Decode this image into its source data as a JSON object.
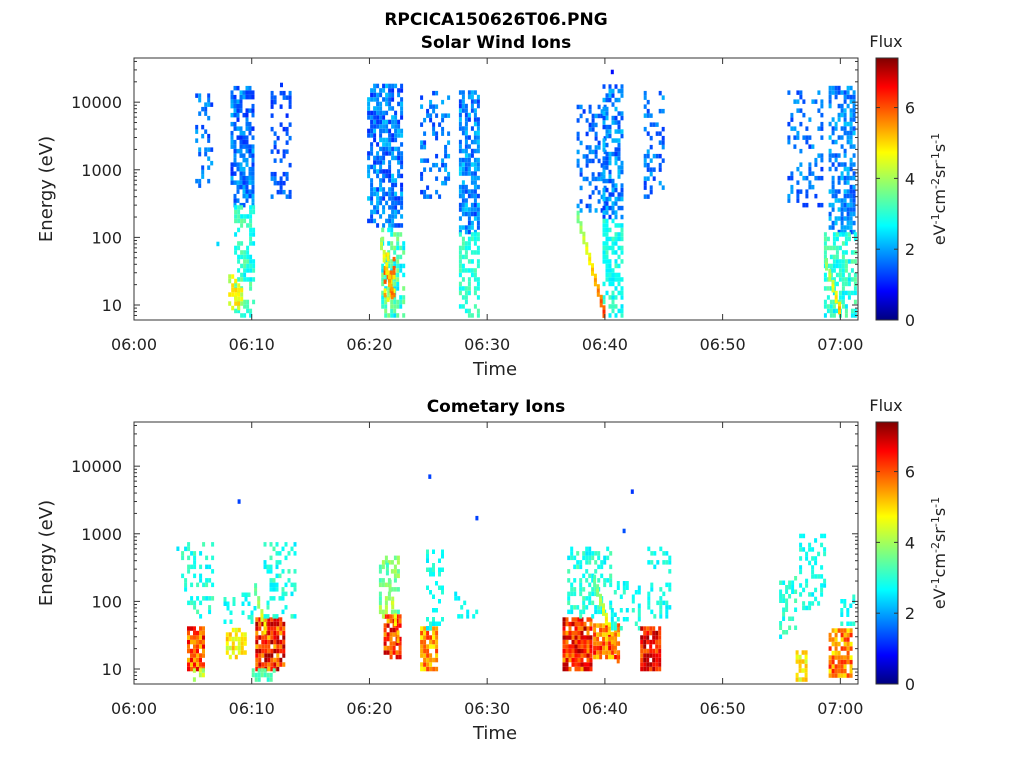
{
  "figure_title": "RPCICA150626T06.PNG",
  "chart_data": [
    {
      "type": "heatmap",
      "title": "Solar Wind Ions",
      "xlabel": "Time",
      "ylabel": "Energy (eV)",
      "x_ticks": [
        "06:00",
        "06:10",
        "06:20",
        "06:30",
        "06:40",
        "06:50",
        "07:00"
      ],
      "x_tick_minutes": [
        0,
        10,
        20,
        30,
        40,
        50,
        60
      ],
      "xlim_minutes": [
        0,
        61.5
      ],
      "y_scale": "log",
      "y_ticks": [
        "10",
        "100",
        "1000",
        "10000"
      ],
      "y_tick_values": [
        10,
        100,
        1000,
        10000
      ],
      "ylim": [
        6,
        45000
      ],
      "colorbar": {
        "label_top": "Flux",
        "range": [
          0,
          7.4
        ],
        "ticks": [
          "0",
          "2",
          "4",
          "6"
        ],
        "tick_values": [
          0,
          2,
          4,
          6
        ]
      },
      "clusters": [
        {
          "t": [
            5.2,
            6.6
          ],
          "e": [
            500,
            14000
          ],
          "level": [
            1.3,
            2.2
          ],
          "density": 0.25
        },
        {
          "t": [
            8.2,
            10.0
          ],
          "e": [
            300,
            17000
          ],
          "level": [
            1.2,
            2.3
          ],
          "density": 0.65
        },
        {
          "t": [
            8.5,
            10.2
          ],
          "e": [
            7,
            300
          ],
          "level": [
            2.6,
            3.6
          ],
          "density": 0.55
        },
        {
          "t": [
            8.0,
            9.2
          ],
          "e": [
            9,
            30
          ],
          "level": [
            3.8,
            5.0
          ],
          "density": 0.7
        },
        {
          "t": [
            11.6,
            13.2
          ],
          "e": [
            400,
            18000
          ],
          "level": [
            1.2,
            2.0
          ],
          "density": 0.3
        },
        {
          "t": [
            19.8,
            22.8
          ],
          "e": [
            150,
            18000
          ],
          "level": [
            1.2,
            2.4
          ],
          "density": 0.6
        },
        {
          "t": [
            21.0,
            22.8
          ],
          "e": [
            7,
            150
          ],
          "level": [
            2.5,
            3.8
          ],
          "density": 0.55
        },
        {
          "t": [
            21.2,
            22.2
          ],
          "e": [
            12,
            60
          ],
          "level": [
            4.5,
            6.0
          ],
          "density": 0.6
        },
        {
          "t": [
            24.3,
            26.8
          ],
          "e": [
            400,
            14000
          ],
          "level": [
            1.3,
            2.3
          ],
          "density": 0.3
        },
        {
          "t": [
            27.6,
            29.3
          ],
          "e": [
            120,
            16000
          ],
          "level": [
            1.3,
            2.5
          ],
          "density": 0.65
        },
        {
          "t": [
            27.6,
            29.3
          ],
          "e": [
            7,
            120
          ],
          "level": [
            2.8,
            3.4
          ],
          "density": 0.55
        },
        {
          "t": [
            37.6,
            40.0
          ],
          "e": [
            250,
            9000
          ],
          "level": [
            1.3,
            2.2
          ],
          "density": 0.28
        },
        {
          "t": [
            39.8,
            41.5
          ],
          "e": [
            200,
            18000
          ],
          "level": [
            1.3,
            2.4
          ],
          "density": 0.65
        },
        {
          "t": [
            39.8,
            41.5
          ],
          "e": [
            7,
            200
          ],
          "level": [
            2.6,
            3.3
          ],
          "density": 0.55
        },
        {
          "t": [
            43.3,
            45.0
          ],
          "e": [
            400,
            14000
          ],
          "level": [
            1.3,
            2.2
          ],
          "density": 0.3
        },
        {
          "t": [
            55.5,
            58.5
          ],
          "e": [
            300,
            16000
          ],
          "level": [
            1.3,
            2.2
          ],
          "density": 0.3
        },
        {
          "t": [
            59.0,
            61.5
          ],
          "e": [
            120,
            18000
          ],
          "level": [
            1.4,
            2.4
          ],
          "density": 0.6
        },
        {
          "t": [
            58.6,
            61.5
          ],
          "e": [
            7,
            120
          ],
          "level": [
            2.6,
            3.5
          ],
          "density": 0.55
        }
      ],
      "streaks": [
        {
          "t": [
            37.6,
            39.8
          ],
          "e": [
            200,
            8
          ],
          "level": [
            3.8,
            6.2
          ]
        },
        {
          "t": [
            20.9,
            21.8
          ],
          "e": [
            80,
            15
          ],
          "level": [
            4.2,
            5.8
          ]
        },
        {
          "t": [
            58.7,
            59.8
          ],
          "e": [
            40,
            9
          ],
          "level": [
            4.0,
            5.2
          ]
        }
      ],
      "isolated": [
        {
          "t": 40.5,
          "e": 28000,
          "level": 1.0
        },
        {
          "t": 12.4,
          "e": 18000,
          "level": 1.3
        },
        {
          "t": 7.0,
          "e": 80,
          "level": 2.5
        }
      ]
    },
    {
      "type": "heatmap",
      "title": "Cometary Ions",
      "xlabel": "Time",
      "ylabel": "Energy (eV)",
      "x_ticks": [
        "06:00",
        "06:10",
        "06:20",
        "06:30",
        "06:40",
        "06:50",
        "07:00"
      ],
      "x_tick_minutes": [
        0,
        10,
        20,
        30,
        40,
        50,
        60
      ],
      "xlim_minutes": [
        0,
        61.5
      ],
      "y_scale": "log",
      "y_ticks": [
        "10",
        "100",
        "1000",
        "10000"
      ],
      "y_tick_values": [
        10,
        100,
        1000,
        10000
      ],
      "ylim": [
        6,
        45000
      ],
      "colorbar": {
        "label_top": "Flux",
        "range": [
          0,
          7.4
        ],
        "ticks": [
          "0",
          "2",
          "4",
          "6"
        ],
        "tick_values": [
          0,
          2,
          4,
          6
        ]
      },
      "clusters": [
        {
          "t": [
            4.0,
            6.8
          ],
          "e": [
            60,
            700
          ],
          "level": [
            2.6,
            3.4
          ],
          "density": 0.3
        },
        {
          "t": [
            4.5,
            6.0
          ],
          "e": [
            10,
            45
          ],
          "level": [
            5.0,
            6.8
          ],
          "density": 0.85
        },
        {
          "t": [
            5.0,
            6.0
          ],
          "e": [
            6,
            10
          ],
          "level": [
            3.8,
            4.6
          ],
          "density": 0.6
        },
        {
          "t": [
            7.8,
            9.4
          ],
          "e": [
            15,
            40
          ],
          "level": [
            4.0,
            5.2
          ],
          "density": 0.7
        },
        {
          "t": [
            7.6,
            10.2
          ],
          "e": [
            50,
            140
          ],
          "level": [
            2.6,
            3.2
          ],
          "density": 0.3
        },
        {
          "t": [
            10.3,
            12.6
          ],
          "e": [
            10,
            60
          ],
          "level": [
            5.0,
            7.2
          ],
          "density": 0.9
        },
        {
          "t": [
            11.0,
            13.6
          ],
          "e": [
            60,
            700
          ],
          "level": [
            2.6,
            3.4
          ],
          "density": 0.35
        },
        {
          "t": [
            10.0,
            12.0
          ],
          "e": [
            6,
            10
          ],
          "level": [
            3.0,
            3.6
          ],
          "density": 0.5
        },
        {
          "t": [
            21.2,
            22.6
          ],
          "e": [
            15,
            60
          ],
          "level": [
            5.0,
            7.0
          ],
          "density": 0.85
        },
        {
          "t": [
            20.8,
            22.5
          ],
          "e": [
            60,
            450
          ],
          "level": [
            3.2,
            4.2
          ],
          "density": 0.5
        },
        {
          "t": [
            24.3,
            25.6
          ],
          "e": [
            10,
            40
          ],
          "level": [
            4.6,
            6.2
          ],
          "density": 0.8
        },
        {
          "t": [
            24.8,
            26.2
          ],
          "e": [
            40,
            600
          ],
          "level": [
            2.6,
            3.2
          ],
          "density": 0.35
        },
        {
          "t": [
            27.2,
            29.0
          ],
          "e": [
            60,
            150
          ],
          "level": [
            2.6,
            3.0
          ],
          "density": 0.25
        },
        {
          "t": [
            36.4,
            38.8
          ],
          "e": [
            10,
            60
          ],
          "level": [
            5.2,
            7.2
          ],
          "density": 0.9
        },
        {
          "t": [
            36.8,
            40.5
          ],
          "e": [
            60,
            600
          ],
          "level": [
            2.6,
            3.4
          ],
          "density": 0.4
        },
        {
          "t": [
            39.0,
            41.2
          ],
          "e": [
            15,
            50
          ],
          "level": [
            4.8,
            6.6
          ],
          "density": 0.85
        },
        {
          "t": [
            40.5,
            43.0
          ],
          "e": [
            40,
            200
          ],
          "level": [
            2.6,
            3.2
          ],
          "density": 0.3
        },
        {
          "t": [
            43.0,
            44.6
          ],
          "e": [
            10,
            40
          ],
          "level": [
            5.6,
            7.2
          ],
          "density": 0.9
        },
        {
          "t": [
            43.6,
            45.4
          ],
          "e": [
            60,
            600
          ],
          "level": [
            2.6,
            3.2
          ],
          "density": 0.3
        },
        {
          "t": [
            54.8,
            56.2
          ],
          "e": [
            30,
            250
          ],
          "level": [
            2.6,
            3.4
          ],
          "density": 0.4
        },
        {
          "t": [
            56.2,
            57.2
          ],
          "e": [
            6,
            20
          ],
          "level": [
            4.2,
            5.2
          ],
          "density": 0.7
        },
        {
          "t": [
            56.5,
            58.6
          ],
          "e": [
            80,
            1000
          ],
          "level": [
            2.6,
            3.2
          ],
          "density": 0.3
        },
        {
          "t": [
            59.0,
            60.8
          ],
          "e": [
            8,
            40
          ],
          "level": [
            4.6,
            6.4
          ],
          "density": 0.8
        },
        {
          "t": [
            60.0,
            61.5
          ],
          "e": [
            40,
            150
          ],
          "level": [
            2.6,
            3.2
          ],
          "density": 0.3
        }
      ],
      "streaks": [
        {
          "t": [
            39.0,
            41.0
          ],
          "e": [
            200,
            15
          ],
          "level": [
            3.6,
            6.0
          ]
        },
        {
          "t": [
            10.2,
            11.0
          ],
          "e": [
            150,
            40
          ],
          "level": [
            3.6,
            5.0
          ]
        },
        {
          "t": [
            21.4,
            22.3
          ],
          "e": [
            300,
            30
          ],
          "level": [
            3.4,
            5.4
          ]
        }
      ],
      "isolated": [
        {
          "t": 8.8,
          "e": 3000,
          "level": 1.4
        },
        {
          "t": 25.0,
          "e": 7000,
          "level": 1.4
        },
        {
          "t": 29.0,
          "e": 1700,
          "level": 1.4
        },
        {
          "t": 41.5,
          "e": 1100,
          "level": 1.5
        },
        {
          "t": 42.2,
          "e": 4200,
          "level": 1.3
        },
        {
          "t": 3.6,
          "e": 600,
          "level": 2.6
        }
      ]
    }
  ]
}
